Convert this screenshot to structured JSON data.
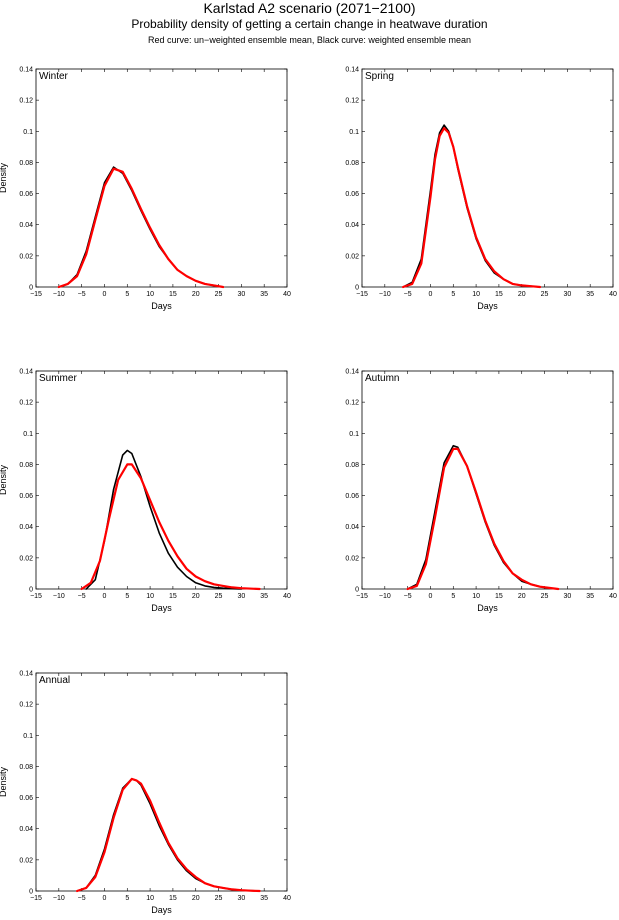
{
  "header": {
    "title": "Karlstad A2 scenario (2071−2100)",
    "subtitle": "Probability density of getting a certain change in heatwave duration",
    "note": "Red curve: un−weighted ensemble mean, Black curve: weighted ensemble mean"
  },
  "colors": {
    "unweighted": "#ff0000",
    "weighted": "#000000"
  },
  "chart_data": [
    {
      "type": "line",
      "panel": "Winter",
      "xlabel": "Days",
      "ylabel": "Density",
      "xlim": [
        -15,
        40
      ],
      "ylim": [
        0,
        0.14
      ],
      "xticks": [
        -15,
        -10,
        -5,
        0,
        5,
        10,
        15,
        20,
        25,
        30,
        35,
        40
      ],
      "yticks": [
        0,
        0.02,
        0.04,
        0.06,
        0.08,
        0.1,
        0.12,
        0.14
      ],
      "series": [
        {
          "color": "#000000",
          "x": [
            -10,
            -8,
            -6,
            -4,
            -2,
            0,
            2,
            4,
            6,
            8,
            10,
            12,
            14,
            16,
            18,
            20,
            22,
            24,
            26
          ],
          "y": [
            0,
            0.002,
            0.008,
            0.023,
            0.045,
            0.067,
            0.077,
            0.073,
            0.062,
            0.049,
            0.037,
            0.026,
            0.018,
            0.011,
            0.007,
            0.004,
            0.002,
            0.001,
            0
          ]
        },
        {
          "color": "#ff0000",
          "x": [
            -10,
            -8,
            -6,
            -4,
            -2,
            0,
            2,
            4,
            6,
            8,
            10,
            12,
            14,
            16,
            18,
            20,
            22,
            24,
            26
          ],
          "y": [
            0,
            0.002,
            0.007,
            0.021,
            0.043,
            0.065,
            0.076,
            0.074,
            0.063,
            0.05,
            0.038,
            0.027,
            0.018,
            0.011,
            0.007,
            0.004,
            0.002,
            0.001,
            0
          ]
        }
      ]
    },
    {
      "type": "line",
      "panel": "Spring",
      "xlabel": "Days",
      "ylabel": "",
      "xlim": [
        -15,
        40
      ],
      "ylim": [
        0,
        0.14
      ],
      "xticks": [
        -15,
        -10,
        -5,
        0,
        5,
        10,
        15,
        20,
        25,
        30,
        35,
        40
      ],
      "yticks": [
        0,
        0.02,
        0.04,
        0.06,
        0.08,
        0.1,
        0.12,
        0.14
      ],
      "series": [
        {
          "color": "#000000",
          "x": [
            -6,
            -4,
            -2,
            0,
            1,
            2,
            3,
            4,
            5,
            6,
            8,
            10,
            12,
            14,
            16,
            18,
            20,
            22,
            24
          ],
          "y": [
            0,
            0.003,
            0.018,
            0.062,
            0.085,
            0.099,
            0.104,
            0.1,
            0.09,
            0.076,
            0.051,
            0.031,
            0.017,
            0.009,
            0.005,
            0.002,
            0.001,
            0.0005,
            0
          ]
        },
        {
          "color": "#ff0000",
          "x": [
            -6,
            -4,
            -2,
            0,
            1,
            2,
            3,
            4,
            5,
            6,
            8,
            10,
            12,
            14,
            16,
            18,
            20,
            22,
            24
          ],
          "y": [
            0,
            0.002,
            0.015,
            0.058,
            0.082,
            0.097,
            0.102,
            0.099,
            0.09,
            0.077,
            0.052,
            0.032,
            0.018,
            0.01,
            0.005,
            0.002,
            0.001,
            0.0005,
            0
          ]
        }
      ]
    },
    {
      "type": "line",
      "panel": "Summer",
      "xlabel": "Days",
      "ylabel": "Density",
      "xlim": [
        -15,
        40
      ],
      "ylim": [
        0,
        0.14
      ],
      "xticks": [
        -15,
        -10,
        -5,
        0,
        5,
        10,
        15,
        20,
        25,
        30,
        35,
        40
      ],
      "yticks": [
        0,
        0.02,
        0.04,
        0.06,
        0.08,
        0.1,
        0.12,
        0.14
      ],
      "series": [
        {
          "color": "#000000",
          "x": [
            -4,
            -2,
            0,
            2,
            4,
            5,
            6,
            8,
            10,
            12,
            14,
            16,
            18,
            20,
            22,
            24,
            26,
            28,
            30
          ],
          "y": [
            0,
            0.006,
            0.031,
            0.064,
            0.086,
            0.089,
            0.087,
            0.072,
            0.053,
            0.036,
            0.023,
            0.014,
            0.008,
            0.004,
            0.002,
            0.001,
            0.0005,
            0.0002,
            0
          ]
        },
        {
          "color": "#ff0000",
          "x": [
            -5,
            -3,
            -1,
            1,
            3,
            5,
            6,
            8,
            10,
            12,
            14,
            16,
            18,
            20,
            22,
            24,
            26,
            28,
            30,
            34
          ],
          "y": [
            0,
            0.004,
            0.018,
            0.045,
            0.07,
            0.08,
            0.08,
            0.071,
            0.057,
            0.043,
            0.031,
            0.021,
            0.013,
            0.008,
            0.005,
            0.003,
            0.002,
            0.001,
            0.0005,
            0
          ]
        }
      ]
    },
    {
      "type": "line",
      "panel": "Autumn",
      "xlabel": "Days",
      "ylabel": "",
      "xlim": [
        -15,
        40
      ],
      "ylim": [
        0,
        0.14
      ],
      "xticks": [
        -15,
        -10,
        -5,
        0,
        5,
        10,
        15,
        20,
        25,
        30,
        35,
        40
      ],
      "yticks": [
        0,
        0.02,
        0.04,
        0.06,
        0.08,
        0.1,
        0.12,
        0.14
      ],
      "series": [
        {
          "color": "#000000",
          "x": [
            -5,
            -3,
            -1,
            1,
            3,
            5,
            6,
            8,
            10,
            12,
            14,
            16,
            18,
            20,
            22,
            24,
            26,
            28
          ],
          "y": [
            0,
            0.003,
            0.019,
            0.05,
            0.081,
            0.092,
            0.091,
            0.079,
            0.061,
            0.043,
            0.028,
            0.017,
            0.01,
            0.005,
            0.003,
            0.0015,
            0.0007,
            0
          ]
        },
        {
          "color": "#ff0000",
          "x": [
            -5,
            -3,
            -1,
            1,
            3,
            5,
            6,
            8,
            10,
            12,
            14,
            16,
            18,
            20,
            22,
            24,
            26,
            28
          ],
          "y": [
            0,
            0.002,
            0.016,
            0.046,
            0.078,
            0.09,
            0.09,
            0.079,
            0.062,
            0.044,
            0.029,
            0.018,
            0.01,
            0.006,
            0.003,
            0.0015,
            0.0007,
            0
          ]
        }
      ]
    },
    {
      "type": "line",
      "panel": "Annual",
      "xlabel": "Days",
      "ylabel": "Density",
      "xlim": [
        -15,
        40
      ],
      "ylim": [
        0,
        0.14
      ],
      "xticks": [
        -15,
        -10,
        -5,
        0,
        5,
        10,
        15,
        20,
        25,
        30,
        35,
        40
      ],
      "yticks": [
        0,
        0.02,
        0.04,
        0.06,
        0.08,
        0.1,
        0.12,
        0.14
      ],
      "series": [
        {
          "color": "#000000",
          "x": [
            -6,
            -4,
            -2,
            0,
            2,
            4,
            6,
            7,
            8,
            10,
            12,
            14,
            16,
            18,
            20,
            22,
            24,
            26,
            28,
            30,
            32,
            34
          ],
          "y": [
            0,
            0.002,
            0.01,
            0.027,
            0.049,
            0.066,
            0.072,
            0.071,
            0.068,
            0.056,
            0.042,
            0.03,
            0.02,
            0.013,
            0.008,
            0.005,
            0.003,
            0.002,
            0.001,
            0.0005,
            0.0002,
            0
          ]
        },
        {
          "color": "#ff0000",
          "x": [
            -6,
            -4,
            -2,
            0,
            2,
            4,
            6,
            7,
            8,
            10,
            12,
            14,
            16,
            18,
            20,
            22,
            24,
            26,
            28,
            30,
            32,
            34
          ],
          "y": [
            0,
            0.002,
            0.009,
            0.025,
            0.047,
            0.065,
            0.072,
            0.071,
            0.069,
            0.058,
            0.044,
            0.031,
            0.021,
            0.014,
            0.009,
            0.005,
            0.003,
            0.002,
            0.001,
            0.0005,
            0.0002,
            0
          ]
        }
      ]
    }
  ]
}
